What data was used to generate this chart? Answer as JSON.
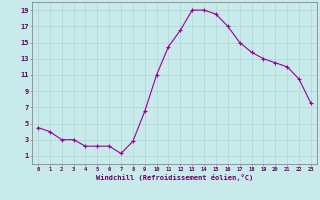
{
  "x": [
    0,
    1,
    2,
    3,
    4,
    5,
    6,
    7,
    8,
    9,
    10,
    11,
    12,
    13,
    14,
    15,
    16,
    17,
    18,
    19,
    20,
    21,
    22,
    23
  ],
  "y": [
    4.5,
    4.0,
    3.0,
    3.0,
    2.2,
    2.2,
    2.2,
    1.3,
    2.8,
    6.5,
    11.0,
    14.5,
    16.5,
    19.0,
    19.0,
    18.5,
    17.0,
    15.0,
    13.8,
    13.0,
    12.5,
    12.0,
    10.5,
    7.5
  ],
  "line_color": "#990099",
  "marker": "+",
  "bg_color": "#c8eaea",
  "grid_color": "#b0d4d4",
  "xlabel": "Windchill (Refroidissement éolien,°C)",
  "xlabel_color": "#660066",
  "ylabel_ticks": [
    1,
    3,
    5,
    7,
    9,
    11,
    13,
    15,
    17,
    19
  ],
  "xlim": [
    -0.5,
    23.5
  ],
  "ylim": [
    0,
    20
  ],
  "xticks": [
    0,
    1,
    2,
    3,
    4,
    5,
    6,
    7,
    8,
    9,
    10,
    11,
    12,
    13,
    14,
    15,
    16,
    17,
    18,
    19,
    20,
    21,
    22,
    23
  ],
  "tick_color": "#660066",
  "spine_color": "#888888"
}
